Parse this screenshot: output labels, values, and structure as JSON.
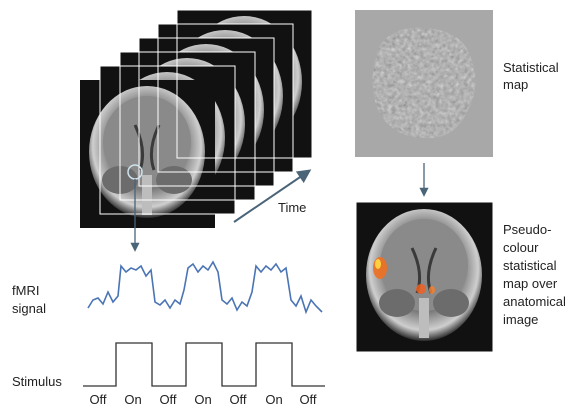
{
  "time_label": "Time",
  "statistical_map_label": [
    "Statistical",
    "map"
  ],
  "pseudo_colour_label": [
    "Pseudo-",
    "colour",
    "statistical",
    "map over",
    "anatomical",
    "image"
  ],
  "fmri_signal_label": [
    "fMRI",
    "signal"
  ],
  "stimulus_label": "Stimulus",
  "stimulus_states": [
    "Off",
    "On",
    "Off",
    "On",
    "Off",
    "On",
    "Off"
  ]
}
